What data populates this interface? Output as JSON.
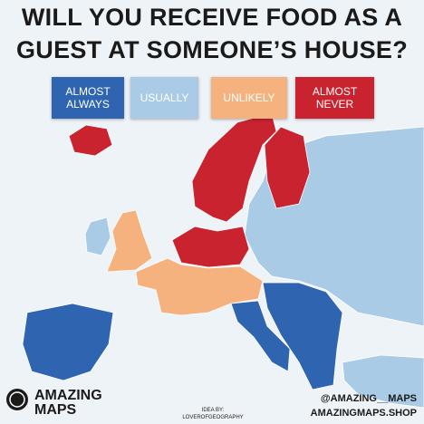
{
  "header": {
    "title_lines": [
      "WILL YOU RECEIVE FOOD AS A",
      "GUEST AT SOMEONE’S HOUSE?"
    ]
  },
  "legend": [
    {
      "label": "ALMOST ALWAYS",
      "color": "#2f65b0"
    },
    {
      "label": "USUALLY",
      "color": "#a9cbe6"
    },
    {
      "label": "UNLIKELY",
      "color": "#f5b27e"
    },
    {
      "label": "ALMOST NEVER",
      "color": "#c8232f"
    }
  ],
  "footer": {
    "brand_lines": [
      "AMAZING",
      "MAPS"
    ],
    "credit_lines": [
      "IDEA BY:",
      "LOVEROFGEOGRAPHY"
    ],
    "handle": "@AMAZING__MAPS",
    "shop": "AMAZINGMAPS.SHOP"
  }
}
